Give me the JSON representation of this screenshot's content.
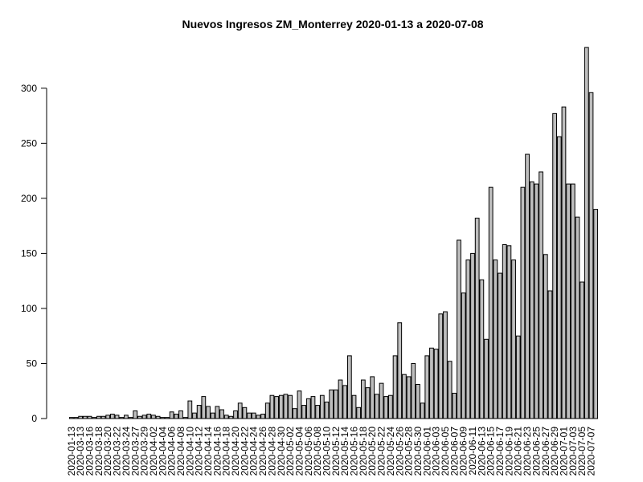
{
  "chart_data": {
    "type": "bar",
    "title": "Nuevos Ingresos ZM_Monterrey 2020-01-13 a 2020-07-08",
    "categories": [
      "2020-01-13",
      null,
      "2020-03-13",
      null,
      "2020-03-16",
      null,
      "2020-03-18",
      null,
      "2020-03-20",
      null,
      "2020-03-22",
      null,
      "2020-03-24",
      null,
      "2020-03-27",
      null,
      "2020-03-29",
      null,
      "2020-04-02",
      null,
      "2020-04-04",
      null,
      "2020-04-06",
      null,
      "2020-04-08",
      null,
      "2020-04-10",
      null,
      "2020-04-12",
      null,
      "2020-04-14",
      null,
      "2020-04-16",
      null,
      "2020-04-18",
      null,
      "2020-04-20",
      null,
      "2020-04-22",
      null,
      "2020-04-24",
      null,
      "2020-04-26",
      null,
      "2020-04-28",
      null,
      "2020-04-30",
      null,
      "2020-05-02",
      null,
      "2020-05-04",
      null,
      "2020-05-06",
      null,
      "2020-05-08",
      null,
      "2020-05-10",
      null,
      "2020-05-12",
      null,
      "2020-05-14",
      null,
      "2020-05-16",
      null,
      "2020-05-18",
      null,
      "2020-05-20",
      null,
      "2020-05-22",
      null,
      "2020-05-24",
      null,
      "2020-05-26",
      null,
      "2020-05-28",
      null,
      "2020-05-30",
      null,
      "2020-06-01",
      null,
      "2020-06-03",
      null,
      "2020-06-05",
      null,
      "2020-06-07",
      null,
      "2020-06-09",
      null,
      "2020-06-11",
      null,
      "2020-06-13",
      null,
      "2020-06-15",
      null,
      "2020-06-17",
      null,
      "2020-06-19",
      null,
      "2020-06-21",
      null,
      "2020-06-23",
      null,
      "2020-06-25",
      null,
      "2020-06-27",
      null,
      "2020-06-29",
      null,
      "2020-07-01",
      null,
      "2020-07-03",
      null,
      "2020-07-05",
      null,
      "2020-07-07",
      null
    ],
    "values": [
      1,
      1,
      2,
      2,
      2,
      1,
      2,
      2,
      3,
      4,
      3,
      1,
      3,
      1,
      7,
      2,
      3,
      4,
      3,
      2,
      1,
      1,
      6,
      4,
      7,
      1,
      16,
      5,
      12,
      20,
      11,
      5,
      11,
      8,
      3,
      2,
      7,
      14,
      10,
      5,
      5,
      3,
      4,
      14,
      21,
      20,
      21,
      22,
      21,
      9,
      25,
      12,
      18,
      20,
      12,
      21,
      15,
      26,
      26,
      35,
      30,
      57,
      21,
      10,
      35,
      28,
      38,
      22,
      32,
      20,
      21,
      57,
      87,
      40,
      38,
      50,
      31,
      14,
      57,
      64,
      63,
      95,
      97,
      52,
      23,
      162,
      114,
      144,
      150,
      182,
      126,
      72,
      210,
      144,
      132,
      158,
      157,
      144,
      75,
      210,
      240,
      215,
      213,
      224,
      149,
      116,
      277,
      256,
      283,
      213,
      213,
      183,
      124,
      337,
      296,
      190
    ],
    "color": "#bebebe",
    "ylim": [
      0,
      340
    ],
    "yticks": [
      0,
      50,
      100,
      150,
      200,
      250,
      300
    ],
    "grid": false
  }
}
